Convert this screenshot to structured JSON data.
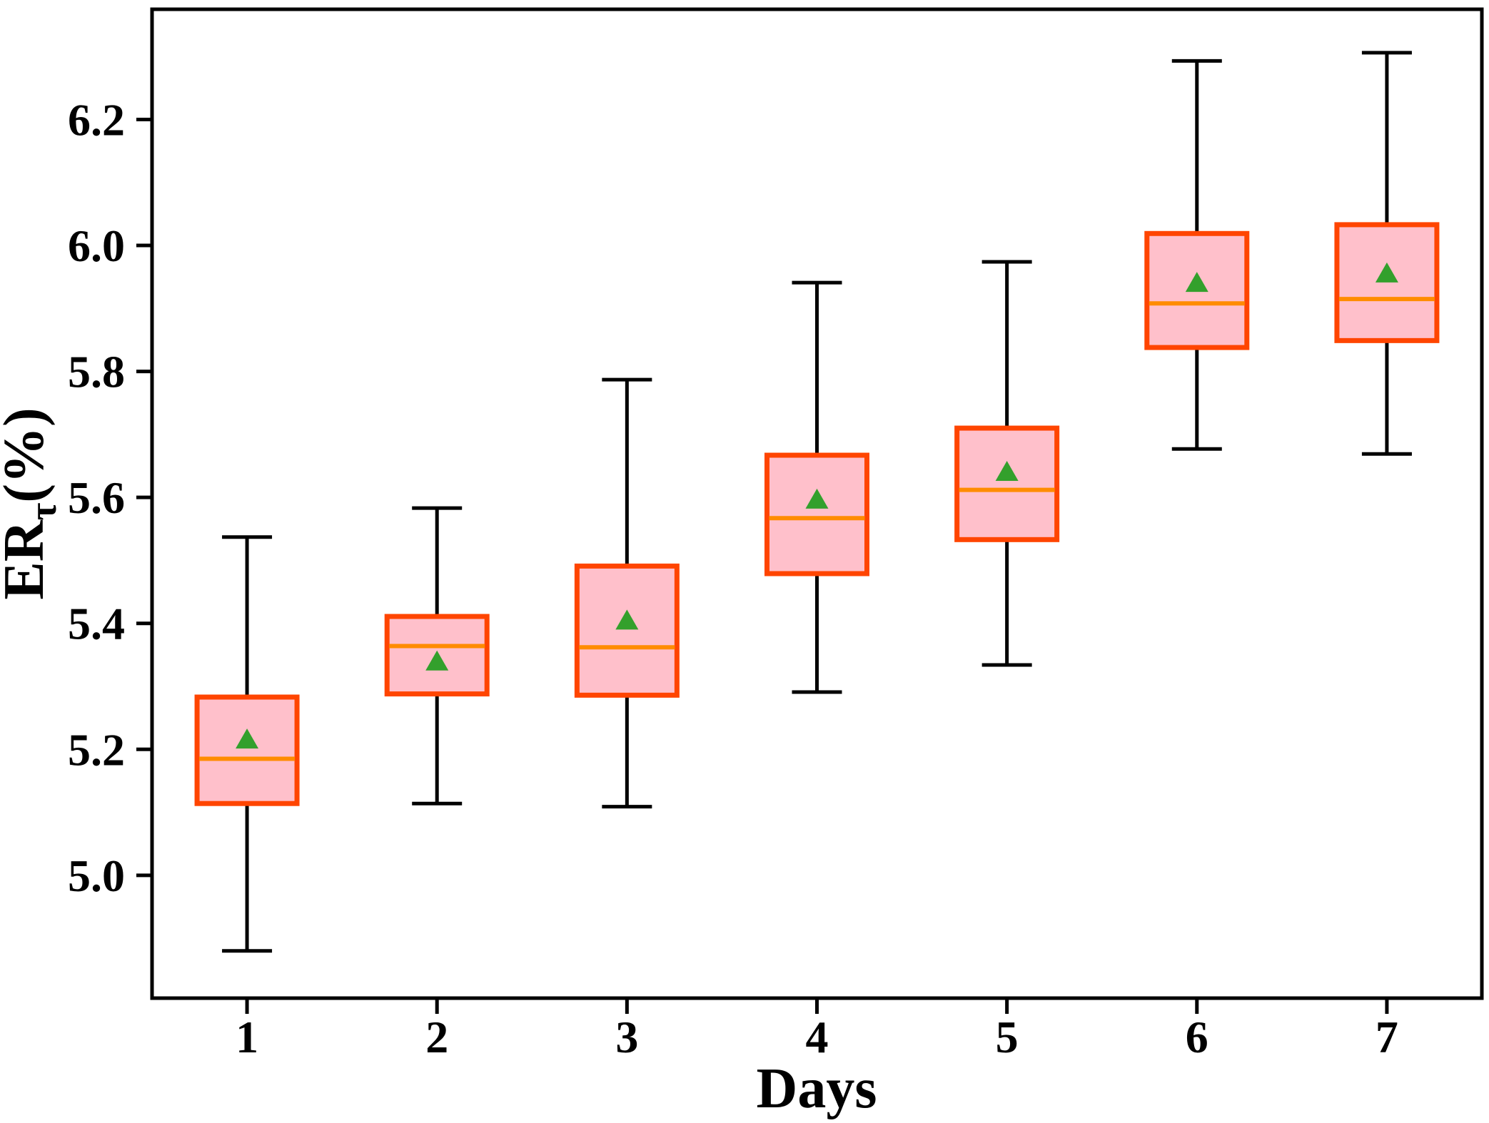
{
  "figure": {
    "xlabel": "Days",
    "ylabel": {
      "prefix": "ER",
      "subscript": "τ",
      "suffix": "(%)"
    },
    "background": "#ffffff"
  },
  "chart_data": {
    "type": "boxplot",
    "title": "",
    "xlabel": "Days",
    "ylabel": "ER_τ(%)",
    "categories": [
      "1",
      "2",
      "3",
      "4",
      "5",
      "6",
      "7"
    ],
    "ylim": [
      4.805,
      6.375
    ],
    "yticks": [
      {
        "label": "5.0",
        "value": 5.0
      },
      {
        "label": "5.2",
        "value": 5.2
      },
      {
        "label": "5.4",
        "value": 5.4
      },
      {
        "label": "5.6",
        "value": 5.6
      },
      {
        "label": "5.8",
        "value": 5.8
      },
      {
        "label": "6.0",
        "value": 6.0
      },
      {
        "label": "6.2",
        "value": 6.2
      }
    ],
    "grid": false,
    "legend": null,
    "mean_marker_shape": "triangle-up",
    "boxes": [
      {
        "category": "1",
        "whislo": 4.88,
        "q1": 5.114,
        "median": 5.185,
        "mean": 5.216,
        "q3": 5.283,
        "whishi": 5.537
      },
      {
        "category": "2",
        "whislo": 5.114,
        "q1": 5.288,
        "median": 5.364,
        "mean": 5.34,
        "q3": 5.411,
        "whishi": 5.583
      },
      {
        "category": "3",
        "whislo": 5.109,
        "q1": 5.286,
        "median": 5.362,
        "mean": 5.405,
        "q3": 5.491,
        "whishi": 5.787
      },
      {
        "category": "4",
        "whislo": 5.291,
        "q1": 5.479,
        "median": 5.567,
        "mean": 5.597,
        "q3": 5.667,
        "whishi": 5.941
      },
      {
        "category": "5",
        "whislo": 5.334,
        "q1": 5.533,
        "median": 5.612,
        "mean": 5.641,
        "q3": 5.71,
        "whishi": 5.974
      },
      {
        "category": "6",
        "whislo": 5.677,
        "q1": 5.838,
        "median": 5.908,
        "mean": 5.941,
        "q3": 6.019,
        "whishi": 6.293
      },
      {
        "category": "7",
        "whislo": 5.669,
        "q1": 5.849,
        "median": 5.915,
        "mean": 5.956,
        "q3": 6.033,
        "whishi": 6.306
      }
    ],
    "colors": {
      "box_fill": "#ffc0cb",
      "box_edge": "#ff4500",
      "median": "#ff8c00",
      "mean_marker": "#33a02c",
      "whisker": "#000000",
      "axis": "#000000",
      "background": "#ffffff"
    }
  }
}
